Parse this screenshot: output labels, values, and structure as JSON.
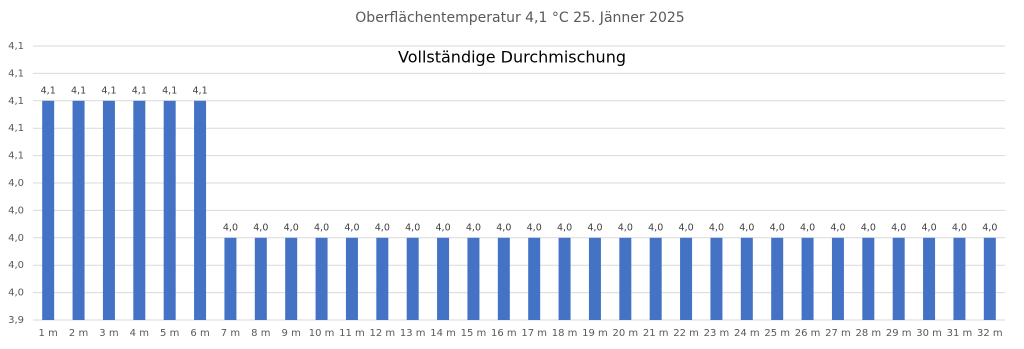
{
  "chart_data": {
    "type": "bar",
    "title": "Oberflächentemperatur 4,1 °C 25. Jänner 2025",
    "annotation": "Vollständige Durchmischung",
    "categories": [
      "1 m",
      "2 m",
      "3 m",
      "4 m",
      "5 m",
      "6 m",
      "7 m",
      "8 m",
      "9 m",
      "10 m",
      "11 m",
      "12 m",
      "13 m",
      "14 m",
      "15 m",
      "16 m",
      "17 m",
      "18 m",
      "19 m",
      "20 m",
      "21 m",
      "22 m",
      "23 m",
      "24 m",
      "25 m",
      "26 m",
      "27 m",
      "28 m",
      "29 m",
      "30 m",
      "31 m",
      "32 m"
    ],
    "values": [
      4.1,
      4.1,
      4.1,
      4.1,
      4.1,
      4.1,
      4.0,
      4.0,
      4.0,
      4.0,
      4.0,
      4.0,
      4.0,
      4.0,
      4.0,
      4.0,
      4.0,
      4.0,
      4.0,
      4.0,
      4.0,
      4.0,
      4.0,
      4.0,
      4.0,
      4.0,
      4.0,
      4.0,
      4.0,
      4.0,
      4.0,
      4.0
    ],
    "value_labels": [
      "4,1",
      "4,1",
      "4,1",
      "4,1",
      "4,1",
      "4,1",
      "4,0",
      "4,0",
      "4,0",
      "4,0",
      "4,0",
      "4,0",
      "4,0",
      "4,0",
      "4,0",
      "4,0",
      "4,0",
      "4,0",
      "4,0",
      "4,0",
      "4,0",
      "4,0",
      "4,0",
      "4,0",
      "4,0",
      "4,0",
      "4,0",
      "4,0",
      "4,0",
      "4,0",
      "4,0",
      "4,0"
    ],
    "color": "#4472c4",
    "ylim": [
      3.94,
      4.14
    ],
    "yticks": [
      {
        "value": 3.94,
        "label": "3,9"
      },
      {
        "value": 3.96,
        "label": "4,0"
      },
      {
        "value": 3.98,
        "label": "4,0"
      },
      {
        "value": 4.0,
        "label": "4,0"
      },
      {
        "value": 4.02,
        "label": "4,0"
      },
      {
        "value": 4.04,
        "label": "4,0"
      },
      {
        "value": 4.06,
        "label": "4,1"
      },
      {
        "value": 4.08,
        "label": "4,1"
      },
      {
        "value": 4.1,
        "label": "4,1"
      },
      {
        "value": 4.12,
        "label": "4,1"
      },
      {
        "value": 4.14,
        "label": "4,1"
      }
    ],
    "grid": true
  }
}
